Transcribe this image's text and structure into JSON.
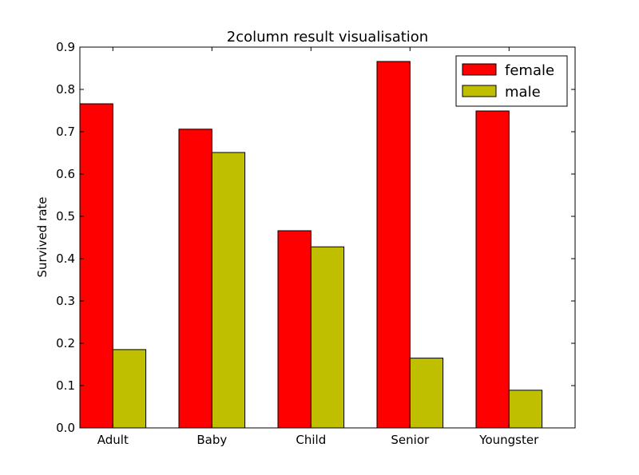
{
  "chart_data": {
    "type": "bar",
    "title": "2column result visualisation",
    "xlabel": "",
    "ylabel": "Survived rate",
    "categories": [
      "Adult",
      "Baby",
      "Child",
      "Senior",
      "Youngster"
    ],
    "series": [
      {
        "name": "female",
        "color": "#ff0000",
        "values": [
          0.766,
          0.706,
          0.466,
          0.866,
          0.749
        ]
      },
      {
        "name": "male",
        "color": "#bfbf00",
        "values": [
          0.185,
          0.651,
          0.428,
          0.165,
          0.089
        ]
      }
    ],
    "ylim": [
      0,
      0.9
    ],
    "yticks": [
      "0.0",
      "0.1",
      "0.2",
      "0.3",
      "0.4",
      "0.5",
      "0.6",
      "0.7",
      "0.8",
      "0.9"
    ],
    "grid": false,
    "legend_position": "top-right"
  }
}
